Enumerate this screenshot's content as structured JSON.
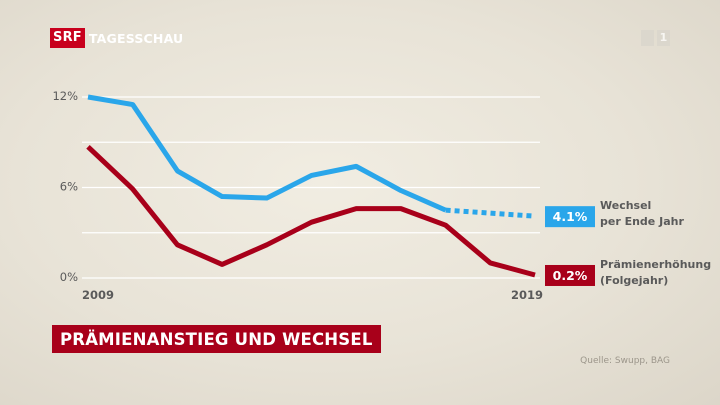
{
  "brand": {
    "logo_text": "SRF",
    "name": "TAGESSCHAU",
    "channel_logo": "SRF 1"
  },
  "colors": {
    "wechsel": "#2aa6ea",
    "praemien": "#a8001a",
    "grid": "#ffffff",
    "axis_text": "#5a5a5a"
  },
  "banner_title": "PRÄMIENANSTIEG UND WECHSEL",
  "source": "Quelle: Swupp, BAG",
  "chart_data": {
    "type": "line",
    "title": "PRÄMIENANSTIEG UND WECHSEL",
    "x": [
      2009,
      2010,
      2011,
      2012,
      2013,
      2014,
      2015,
      2016,
      2017,
      2018,
      2019
    ],
    "x_tick_labels": [
      "2009",
      "2019"
    ],
    "y_tick_labels": [
      "12%",
      "6%",
      "0%"
    ],
    "ylim": [
      0,
      12
    ],
    "grid": true,
    "series": [
      {
        "name": "Wechsel per Ende Jahr",
        "label_lines": [
          "Wechsel",
          "per Ende Jahr"
        ],
        "end_label": "4.1%",
        "values": [
          12.0,
          11.5,
          7.1,
          5.4,
          5.3,
          6.8,
          7.4,
          5.8,
          4.5,
          null,
          4.1
        ],
        "projected_from_index": 8
      },
      {
        "name": "Prämienerhöhung (Folgejahr)",
        "label_lines": [
          "Prämienerhöhung",
          "(Folgejahr)"
        ],
        "end_label": "0.2%",
        "values": [
          8.7,
          5.9,
          2.2,
          0.9,
          2.2,
          3.7,
          4.6,
          4.6,
          3.5,
          1.0,
          0.2
        ],
        "projected_from_index": null
      }
    ]
  }
}
